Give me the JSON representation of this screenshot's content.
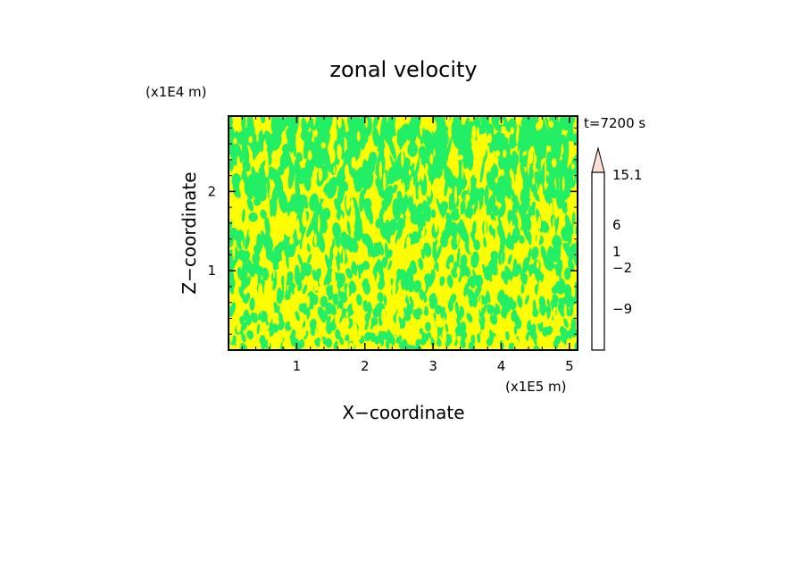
{
  "chart_data": {
    "type": "heatmap",
    "title": "zonal velocity",
    "xlabel": "X−coordinate",
    "ylabel": "Z−coordinate",
    "x_scale_label": "(x1E5 m)",
    "y_scale_label": "(x1E4 m)",
    "time_label": "t=7200 s",
    "xlim": [
      0,
      5.12
    ],
    "ylim": [
      0,
      2.95
    ],
    "x_ticks": [
      1,
      2,
      3,
      4,
      5
    ],
    "y_ticks": [
      1,
      2
    ],
    "dominant_levels": [
      {
        "name": "yellow",
        "color": "#ffff00"
      },
      {
        "name": "green",
        "color": "#22ee66"
      }
    ],
    "colorbar": {
      "orientation": "vertical",
      "extend": "max",
      "labels": [
        "15.1",
        "6",
        "1",
        "−2",
        "−9"
      ],
      "colors_bottom_to_top": [
        "#ee00aa",
        "#bb00aa",
        "#880099",
        "#1100aa",
        "#0033dd",
        "#00aadd",
        "#22ee66",
        "#ffff00",
        "#ffcc00",
        "#ff9900",
        "#ff7700",
        "#ee2200",
        "#dd4444",
        "#ee8888",
        "#ffbbbb"
      ]
    }
  }
}
